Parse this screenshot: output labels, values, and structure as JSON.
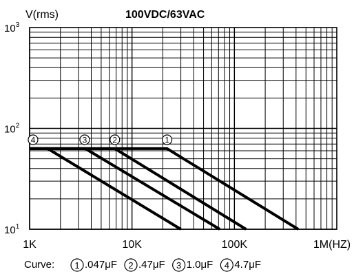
{
  "chart_data": {
    "type": "line",
    "title": "100VDC/63VAC",
    "ylabel": "V(rms)",
    "x_axis": {
      "scale": "log",
      "range": [
        1000,
        1000000
      ],
      "ticks": [
        {
          "value": 1000,
          "label": "1K"
        },
        {
          "value": 10000,
          "label": "10K"
        },
        {
          "value": 100000,
          "label": "100K"
        },
        {
          "value": 1000000,
          "label": "1M(HZ)"
        }
      ]
    },
    "y_axis": {
      "scale": "log",
      "range": [
        10,
        1000
      ],
      "ticks": [
        {
          "value": 10,
          "base": "10",
          "exp": "1"
        },
        {
          "value": 100,
          "base": "10",
          "exp": "2"
        },
        {
          "value": 1000,
          "base": "10",
          "exp": "3"
        }
      ]
    },
    "grid": true,
    "series": [
      {
        "marker": "1",
        "x": [
          1000,
          22000,
          420000
        ],
        "y": [
          63,
          63,
          10
        ]
      },
      {
        "marker": "2",
        "x": [
          1000,
          6800,
          130000
        ],
        "y": [
          63,
          63,
          10
        ]
      },
      {
        "marker": "3",
        "x": [
          1000,
          3500,
          72000
        ],
        "y": [
          63,
          63,
          10
        ]
      },
      {
        "marker": "4",
        "x": [
          1000,
          1500,
          30000
        ],
        "y": [
          63,
          63,
          10
        ]
      }
    ],
    "markers": [
      {
        "label": "4",
        "x": 1080
      },
      {
        "label": "3",
        "x": 3450
      },
      {
        "label": "2",
        "x": 6800
      },
      {
        "label": "1",
        "x": 22000
      }
    ],
    "legend": {
      "prefix": "Curve:",
      "items": [
        {
          "marker": "1",
          "text": ".047μF"
        },
        {
          "marker": "2",
          "text": ".47μF"
        },
        {
          "marker": "3",
          "text": "1.0μF"
        },
        {
          "marker": "4",
          "text": "4.7μF"
        }
      ]
    }
  }
}
